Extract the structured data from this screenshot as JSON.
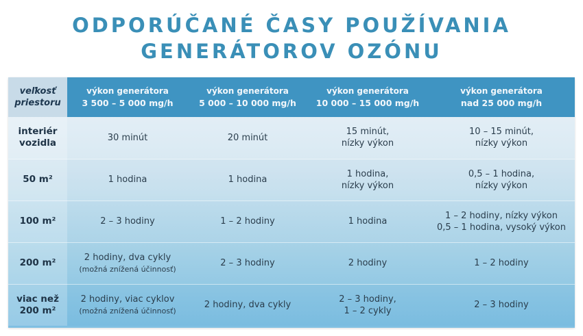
{
  "title": {
    "line1": "ODPORÚČANÉ ČASY POUŽÍVANIA",
    "line2": "GENERÁTOROV OZÓNU"
  },
  "table": {
    "corner": [
      "veľkosť",
      "priestoru"
    ],
    "columns": [
      {
        "label": "výkon generátora",
        "range": "3 500 – 5 000 mg/h"
      },
      {
        "label": "výkon generátora",
        "range": "5 000 – 10 000 mg/h"
      },
      {
        "label": "výkon generátora",
        "range": "10 000 – 15 000 mg/h"
      },
      {
        "label": "výkon generátora",
        "range": "nad 25 000 mg/h"
      }
    ],
    "rows": [
      {
        "size": [
          "interiér",
          "vozidla"
        ],
        "cells": [
          {
            "lines": [
              "30 minút"
            ],
            "note": ""
          },
          {
            "lines": [
              "20 minút"
            ],
            "note": ""
          },
          {
            "lines": [
              "15 minút,",
              "nízky výkon"
            ],
            "note": ""
          },
          {
            "lines": [
              "10 – 15 minút,",
              "nízky výkon"
            ],
            "note": ""
          }
        ]
      },
      {
        "size": [
          "50 m²",
          ""
        ],
        "cells": [
          {
            "lines": [
              "1 hodina"
            ],
            "note": ""
          },
          {
            "lines": [
              "1 hodina"
            ],
            "note": ""
          },
          {
            "lines": [
              "1 hodina,",
              "nízky výkon"
            ],
            "note": ""
          },
          {
            "lines": [
              "0,5 – 1 hodina,",
              "nízky výkon"
            ],
            "note": ""
          }
        ]
      },
      {
        "size": [
          "100 m²",
          ""
        ],
        "cells": [
          {
            "lines": [
              "2 – 3 hodiny"
            ],
            "note": ""
          },
          {
            "lines": [
              "1 – 2 hodiny"
            ],
            "note": ""
          },
          {
            "lines": [
              "1 hodina"
            ],
            "note": ""
          },
          {
            "lines": [
              "1 – 2 hodiny, nízky výkon",
              "0,5 – 1 hodina, vysoký výkon"
            ],
            "note": ""
          }
        ]
      },
      {
        "size": [
          "200 m²",
          ""
        ],
        "cells": [
          {
            "lines": [
              "2 hodiny, dva cykly"
            ],
            "note": "(možná znížená účinnosť)"
          },
          {
            "lines": [
              "2 – 3 hodiny"
            ],
            "note": ""
          },
          {
            "lines": [
              "2 hodiny"
            ],
            "note": ""
          },
          {
            "lines": [
              "1 – 2 hodiny"
            ],
            "note": ""
          }
        ]
      },
      {
        "size": [
          "viac než",
          "200 m²"
        ],
        "cells": [
          {
            "lines": [
              "2 hodiny, viac cyklov"
            ],
            "note": "(možná znížená účinnosť)"
          },
          {
            "lines": [
              "2 hodiny, dva cykly"
            ],
            "note": ""
          },
          {
            "lines": [
              "2 – 3 hodiny,",
              "1 – 2 cykly"
            ],
            "note": ""
          },
          {
            "lines": [
              "2 – 3 hodiny"
            ],
            "note": ""
          }
        ]
      }
    ]
  }
}
